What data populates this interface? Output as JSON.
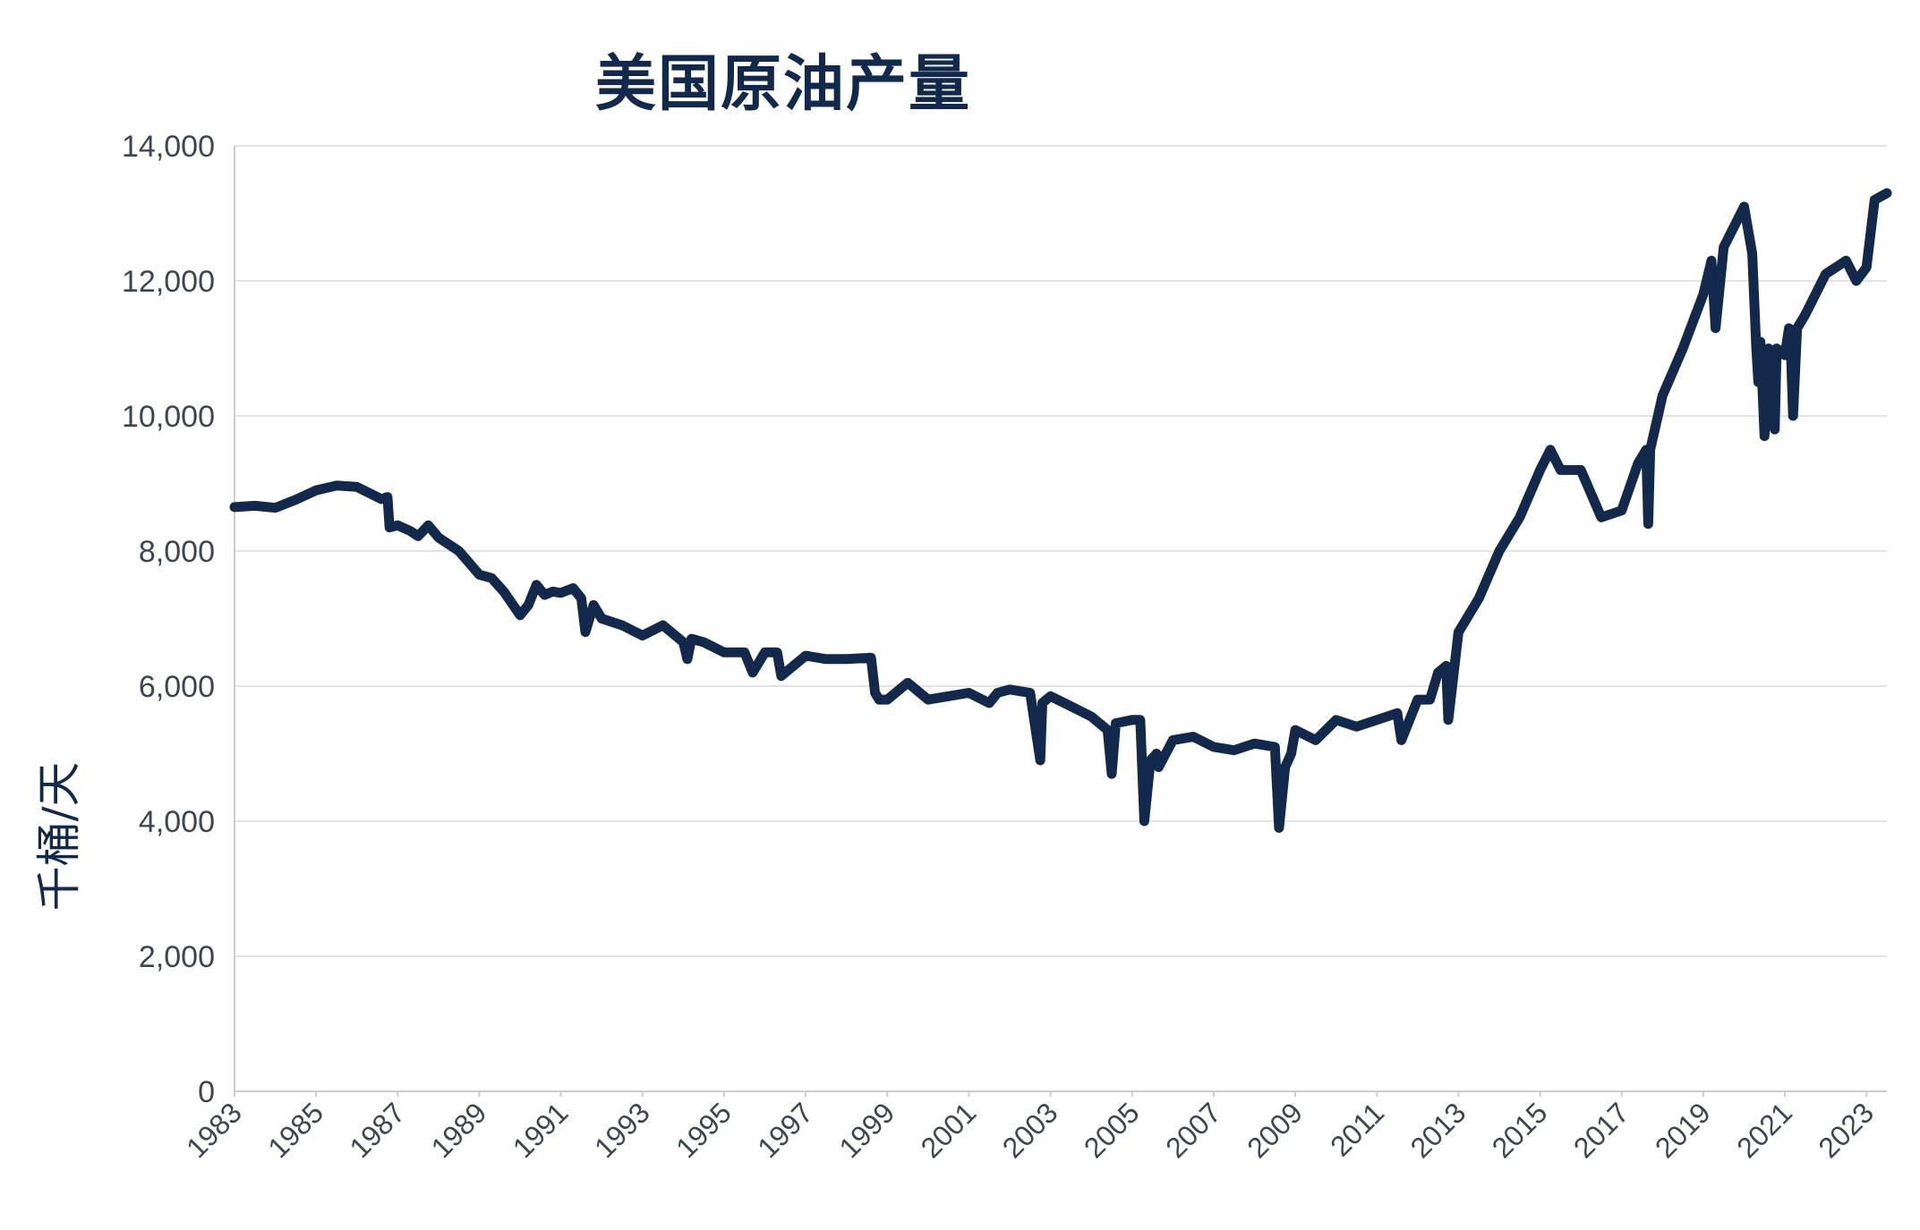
{
  "chart_data": {
    "type": "line",
    "title": "美国原油产量",
    "xlabel": "",
    "ylabel": "千桶/天",
    "x_range": [
      1983,
      2023.5
    ],
    "ylim": [
      0,
      14000
    ],
    "y_ticks": [
      0,
      2000,
      4000,
      6000,
      8000,
      10000,
      12000,
      14000
    ],
    "y_tick_labels": [
      "0",
      "2,000",
      "4,000",
      "6,000",
      "8,000",
      "10,000",
      "12,000",
      "14,000"
    ],
    "x_ticks": [
      1983,
      1985,
      1987,
      1989,
      1991,
      1993,
      1995,
      1997,
      1999,
      2001,
      2003,
      2005,
      2007,
      2009,
      2011,
      2013,
      2015,
      2017,
      2019,
      2021,
      2023
    ],
    "x_tick_labels": [
      "1983",
      "1985",
      "1987",
      "1989",
      "1991",
      "1993",
      "1995",
      "1997",
      "1999",
      "2001",
      "2003",
      "2005",
      "2007",
      "2009",
      "2011",
      "2013",
      "2015",
      "2017",
      "2019",
      "2021",
      "2023"
    ],
    "grid": true,
    "legend": false,
    "line_color": "#13294B",
    "gridline_color": "#e3e3e3",
    "axis_line_color": "#cccccc",
    "tick_label_color": "#3d4552",
    "series": [
      {
        "x": [
          1983.0,
          1983.5,
          1984.0,
          1984.5,
          1985.0,
          1985.5,
          1986.0,
          1986.6,
          1986.75,
          1986.8,
          1987.0,
          1987.3,
          1987.5,
          1987.75,
          1988.0,
          1988.5,
          1989.0,
          1989.3,
          1989.6,
          1990.0,
          1990.2,
          1990.4,
          1990.6,
          1990.8,
          1991.0,
          1991.3,
          1991.5,
          1991.6,
          1991.8,
          1992.0,
          1992.5,
          1993.0,
          1993.5,
          1994.0,
          1994.1,
          1994.2,
          1994.5,
          1995.0,
          1995.5,
          1995.7,
          1996.0,
          1996.3,
          1996.4,
          1997.0,
          1997.5,
          1998.0,
          1998.6,
          1998.7,
          1998.8,
          1999.0,
          1999.5,
          2000.0,
          2000.5,
          2001.0,
          2001.5,
          2001.7,
          2002.0,
          2002.5,
          2002.75,
          2002.8,
          2003.0,
          2003.5,
          2004.0,
          2004.4,
          2004.5,
          2004.6,
          2005.0,
          2005.2,
          2005.3,
          2005.45,
          2005.6,
          2005.65,
          2006.0,
          2006.5,
          2007.0,
          2007.5,
          2008.0,
          2008.5,
          2008.6,
          2008.75,
          2008.9,
          2009.0,
          2009.5,
          2010.0,
          2010.5,
          2011.0,
          2011.5,
          2011.6,
          2012.0,
          2012.3,
          2012.5,
          2012.7,
          2012.75,
          2013.0,
          2013.5,
          2014.0,
          2014.5,
          2015.0,
          2015.25,
          2015.5,
          2016.0,
          2016.5,
          2017.0,
          2017.4,
          2017.6,
          2017.65,
          2017.7,
          2018.0,
          2018.5,
          2019.0,
          2019.2,
          2019.3,
          2019.5,
          2020.0,
          2020.2,
          2020.3,
          2020.35,
          2020.4,
          2020.5,
          2020.6,
          2020.7,
          2020.75,
          2020.8,
          2021.0,
          2021.1,
          2021.15,
          2021.2,
          2021.3,
          2021.5,
          2022.0,
          2022.5,
          2022.75,
          2023.0,
          2023.2,
          2023.5
        ],
        "y": [
          8650,
          8670,
          8640,
          8760,
          8900,
          8970,
          8950,
          8770,
          8800,
          8350,
          8380,
          8300,
          8220,
          8380,
          8200,
          8000,
          7650,
          7600,
          7400,
          7050,
          7200,
          7500,
          7350,
          7400,
          7380,
          7450,
          7300,
          6800,
          7200,
          7000,
          6900,
          6750,
          6900,
          6650,
          6400,
          6700,
          6650,
          6500,
          6500,
          6200,
          6500,
          6500,
          6150,
          6450,
          6400,
          6400,
          6420,
          5900,
          5800,
          5800,
          6050,
          5800,
          5850,
          5900,
          5750,
          5900,
          5950,
          5900,
          4900,
          5750,
          5850,
          5700,
          5550,
          5350,
          4700,
          5450,
          5500,
          5500,
          4000,
          4900,
          5000,
          4800,
          5200,
          5250,
          5100,
          5050,
          5150,
          5100,
          3900,
          4800,
          5000,
          5350,
          5200,
          5500,
          5400,
          5500,
          5600,
          5200,
          5800,
          5800,
          6200,
          6300,
          5500,
          6800,
          7300,
          8000,
          8500,
          9200,
          9500,
          9200,
          9200,
          8500,
          8600,
          9300,
          9500,
          8400,
          9500,
          10300,
          11000,
          11800,
          12300,
          11300,
          12500,
          13100,
          12400,
          11000,
          10500,
          11100,
          9700,
          11000,
          10900,
          9800,
          11000,
          10900,
          11300,
          10900,
          10000,
          11300,
          11500,
          12100,
          12300,
          12000,
          12200,
          13200,
          13300
        ]
      }
    ]
  }
}
